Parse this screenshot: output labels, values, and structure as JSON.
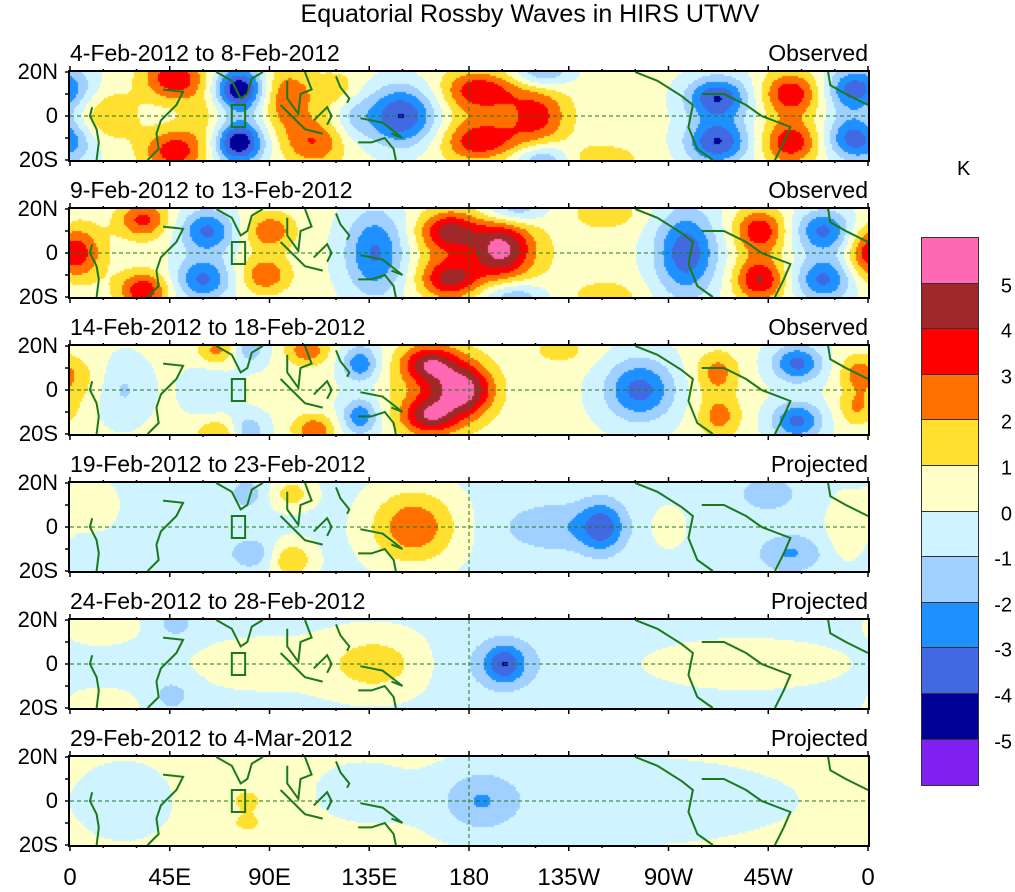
{
  "chart_data": {
    "type": "heatmap",
    "title": "Equatorial Rossby Waves in HIRS UTWV",
    "unit": "K",
    "x_ticks": [
      "0",
      "45E",
      "90E",
      "135E",
      "180",
      "135W",
      "90W",
      "45W",
      "0"
    ],
    "x_tick_lons": [
      0,
      45,
      90,
      135,
      180,
      225,
      270,
      315,
      360
    ],
    "y_ticks": [
      "20N",
      "0",
      "20S"
    ],
    "xlim": [
      0,
      360
    ],
    "ylim": [
      -20,
      20
    ],
    "colorbar": {
      "levels": [
        "5",
        "4",
        "3",
        "2",
        "1",
        "0",
        "-1",
        "-2",
        "-3",
        "-4",
        "-5"
      ],
      "colors": [
        "#ff69b4",
        "#a02828",
        "#ff0000",
        "#ff7000",
        "#ffe030",
        "#ffffc8",
        "#d0f4ff",
        "#a0d0ff",
        "#1e90ff",
        "#4169e1",
        "#000096",
        "#8020f0"
      ]
    },
    "blob_format": [
      "lon",
      "lat",
      "anomaly_K",
      "lon_width_deg",
      "lat_width_deg"
    ],
    "panels": [
      {
        "period": "4-Feb-2012 to 8-Feb-2012",
        "kind": "Observed",
        "base": 0.3,
        "blobs": [
          [
            16,
            0,
            1.8,
            10,
            8
          ],
          [
            3,
            12,
            -1.5,
            8,
            8
          ],
          [
            3,
            -12,
            -1.5,
            8,
            8
          ],
          [
            47,
            17,
            3.5,
            10,
            7
          ],
          [
            47,
            -16,
            3.3,
            10,
            7
          ],
          [
            62,
            0,
            1.2,
            8,
            10
          ],
          [
            76,
            12,
            -5.3,
            8,
            7
          ],
          [
            76,
            -12,
            -5.3,
            8,
            7
          ],
          [
            98,
            8,
            2.6,
            8,
            10
          ],
          [
            110,
            -12,
            2.6,
            10,
            8
          ],
          [
            120,
            12,
            1.5,
            8,
            6
          ],
          [
            127,
            0,
            -1.2,
            6,
            8
          ],
          [
            150,
            0,
            -4.9,
            12,
            10
          ],
          [
            183,
            12,
            2.2,
            10,
            6
          ],
          [
            183,
            -12,
            2.2,
            10,
            6
          ],
          [
            180,
            0,
            1.2,
            25,
            15
          ],
          [
            212,
            0,
            2.2,
            9,
            7
          ],
          [
            200,
            10,
            1.2,
            14,
            6
          ],
          [
            200,
            -10,
            1.2,
            14,
            6
          ],
          [
            213,
            20,
            -2.5,
            9,
            5
          ],
          [
            213,
            -20,
            -2.5,
            9,
            5
          ],
          [
            240,
            -20,
            1.5,
            12,
            5
          ],
          [
            292,
            8,
            -4.3,
            10,
            7
          ],
          [
            292,
            -12,
            -4.3,
            10,
            7
          ],
          [
            325,
            10,
            3.5,
            9,
            7
          ],
          [
            325,
            -12,
            3.5,
            9,
            7
          ],
          [
            352,
            12,
            -3.2,
            8,
            7
          ],
          [
            352,
            -10,
            -3.2,
            8,
            7
          ]
        ]
      },
      {
        "period": "9-Feb-2012 to 13-Feb-2012",
        "kind": "Observed",
        "base": 0.3,
        "blobs": [
          [
            5,
            0,
            2.5,
            8,
            9
          ],
          [
            33,
            15,
            3,
            8,
            6
          ],
          [
            33,
            -17,
            3.5,
            8,
            6
          ],
          [
            62,
            10,
            -3.5,
            9,
            7
          ],
          [
            60,
            -12,
            -3.5,
            9,
            7
          ],
          [
            90,
            10,
            2.5,
            8,
            6
          ],
          [
            88,
            -10,
            2.5,
            8,
            6
          ],
          [
            138,
            0,
            -3.6,
            10,
            14
          ],
          [
            171,
            10,
            3.2,
            9,
            6
          ],
          [
            171,
            -12,
            3.2,
            9,
            6
          ],
          [
            195,
            2,
            3.5,
            9,
            9
          ],
          [
            185,
            0,
            1.8,
            22,
            14
          ],
          [
            200,
            20,
            -2.5,
            10,
            5
          ],
          [
            200,
            -20,
            -2.5,
            10,
            5
          ],
          [
            242,
            18,
            1.5,
            10,
            5
          ],
          [
            242,
            -20,
            1.5,
            10,
            5
          ],
          [
            278,
            0,
            -4,
            10,
            14
          ],
          [
            311,
            10,
            3.5,
            8,
            7
          ],
          [
            311,
            -12,
            3.8,
            8,
            7
          ],
          [
            340,
            10,
            -3.5,
            9,
            7
          ],
          [
            340,
            -12,
            -3.5,
            9,
            7
          ],
          [
            358,
            0,
            1.5,
            6,
            8
          ]
        ]
      },
      {
        "period": "14-Feb-2012 to 18-Feb-2012",
        "kind": "Observed",
        "base": 0.2,
        "blobs": [
          [
            5,
            5,
            1,
            8,
            8
          ],
          [
            24,
            0,
            -1.3,
            8,
            10
          ],
          [
            67,
            18,
            2.2,
            7,
            5
          ],
          [
            80,
            18,
            -2,
            6,
            5
          ],
          [
            107,
            18,
            2.5,
            7,
            5
          ],
          [
            131,
            12,
            -3,
            6,
            6
          ],
          [
            131,
            -12,
            -3,
            6,
            6
          ],
          [
            67,
            -20,
            2,
            7,
            5
          ],
          [
            80,
            -18,
            -2,
            6,
            5
          ],
          [
            110,
            -18,
            2.5,
            7,
            5
          ],
          [
            63,
            0,
            -1.2,
            8,
            8
          ],
          [
            162,
            12,
            3.5,
            9,
            6
          ],
          [
            178,
            0,
            3.9,
            9,
            8
          ],
          [
            162,
            -12,
            3.5,
            9,
            6
          ],
          [
            168,
            0,
            2,
            16,
            14
          ],
          [
            257,
            0,
            -3.6,
            11,
            10
          ],
          [
            292,
            8,
            2.2,
            7,
            7
          ],
          [
            293,
            -12,
            2.2,
            7,
            7
          ],
          [
            328,
            12,
            -3.5,
            8,
            6
          ],
          [
            328,
            -14,
            -3.5,
            8,
            6
          ],
          [
            355,
            8,
            1.8,
            6,
            6
          ],
          [
            355,
            -8,
            1.8,
            6,
            6
          ],
          [
            221,
            18,
            1.2,
            10,
            5
          ]
        ]
      },
      {
        "period": "19-Feb-2012 to 23-Feb-2012",
        "kind": "Projected",
        "base": -0.3,
        "blobs": [
          [
            155,
            0,
            3.1,
            14,
            12
          ],
          [
            240,
            0,
            -2.8,
            7,
            8
          ],
          [
            220,
            0,
            -1.5,
            18,
            8
          ],
          [
            270,
            0,
            1.2,
            5,
            6
          ],
          [
            325,
            -12,
            -1.8,
            10,
            6
          ],
          [
            315,
            15,
            -1.3,
            10,
            6
          ],
          [
            350,
            0,
            1.2,
            6,
            10
          ],
          [
            100,
            -15,
            2.2,
            7,
            6
          ],
          [
            100,
            15,
            1.8,
            7,
            5
          ],
          [
            80,
            15,
            -1.2,
            6,
            5
          ],
          [
            82,
            -12,
            -1.5,
            7,
            5
          ],
          [
            10,
            10,
            1,
            8,
            8
          ]
        ]
      },
      {
        "period": "24-Feb-2012 to 28-Feb-2012",
        "kind": "Projected",
        "base": -0.3,
        "blobs": [
          [
            138,
            0,
            1.8,
            16,
            10
          ],
          [
            196,
            0,
            -2.8,
            6,
            6
          ],
          [
            196,
            0,
            -1.0,
            18,
            10
          ],
          [
            15,
            18,
            1.2,
            10,
            5
          ],
          [
            15,
            -20,
            1.2,
            10,
            5
          ],
          [
            48,
            18,
            -1.2,
            6,
            5
          ],
          [
            46,
            -14,
            -1.3,
            6,
            5
          ],
          [
            305,
            0,
            0.6,
            40,
            10
          ],
          [
            85,
            0,
            0.5,
            30,
            12
          ]
        ]
      },
      {
        "period": "29-Feb-2012 to 4-Mar-2012",
        "kind": "Projected",
        "base": 0.3,
        "blobs": [
          [
            185,
            0,
            -1.8,
            12,
            10
          ],
          [
            240,
            0,
            -0.9,
            60,
            14
          ],
          [
            80,
            0,
            1.2,
            5,
            4
          ],
          [
            80,
            -10,
            1.1,
            5,
            3
          ],
          [
            25,
            0,
            -0.9,
            14,
            12
          ],
          [
            130,
            5,
            -0.5,
            15,
            10
          ]
        ]
      }
    ]
  }
}
